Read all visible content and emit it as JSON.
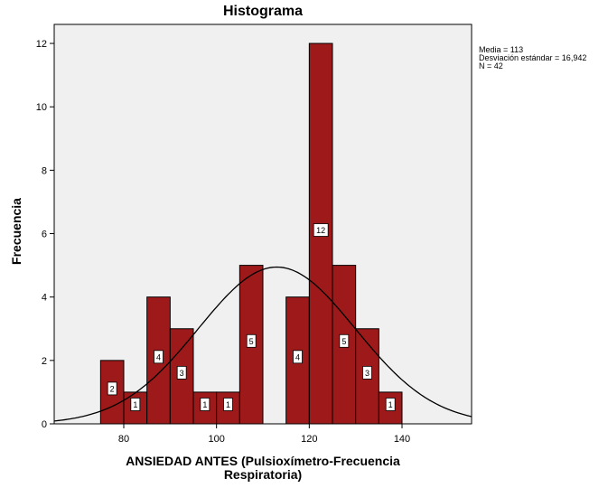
{
  "chart_data": {
    "type": "bar",
    "title": "Histograma",
    "xlabel": "ANSIEDAD ANTES (Pulsioxímetro-Frecuencia Respiratoria)",
    "xlabel_lines": [
      "ANSIEDAD ANTES (Pulsioxímetro-Frecuencia",
      "Respiratoria)"
    ],
    "ylabel": "Frecuencia",
    "xlim": [
      65,
      155
    ],
    "ylim": [
      0,
      12.6
    ],
    "xticks": [
      80,
      100,
      120,
      140
    ],
    "yticks": [
      0,
      2,
      4,
      6,
      8,
      10,
      12
    ],
    "bins": [
      {
        "from": 75,
        "to": 80,
        "count": 2
      },
      {
        "from": 80,
        "to": 85,
        "count": 1
      },
      {
        "from": 85,
        "to": 90,
        "count": 4
      },
      {
        "from": 90,
        "to": 95,
        "count": 3
      },
      {
        "from": 95,
        "to": 100,
        "count": 1
      },
      {
        "from": 100,
        "to": 105,
        "count": 1
      },
      {
        "from": 105,
        "to": 110,
        "count": 5
      },
      {
        "from": 110,
        "to": 115,
        "count": 0
      },
      {
        "from": 115,
        "to": 120,
        "count": 4
      },
      {
        "from": 120,
        "to": 125,
        "count": 12
      },
      {
        "from": 125,
        "to": 130,
        "count": 5
      },
      {
        "from": 130,
        "to": 135,
        "count": 3
      },
      {
        "from": 135,
        "to": 140,
        "count": 1
      }
    ],
    "normal_curve": {
      "mean": 113,
      "sd": 16.942,
      "n": 42,
      "bin_width": 5
    },
    "stats": [
      "Media = 113",
      "Desviación estándar = 16,942",
      "N = 42"
    ],
    "colors": {
      "bar_fill": "#9e1a1a",
      "bar_edge": "#000000",
      "plot_bg": "#f0f0f0",
      "curve": "#000000"
    },
    "grid": false,
    "legend": "none"
  }
}
